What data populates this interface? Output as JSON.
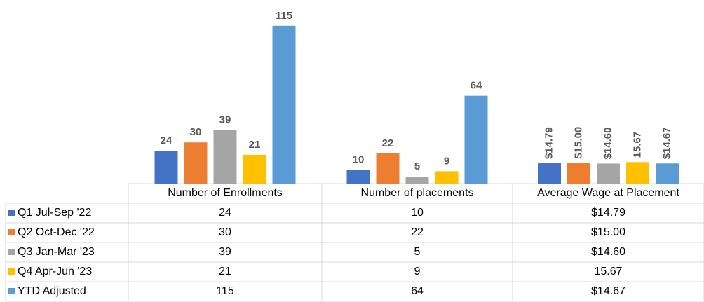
{
  "chart_data": {
    "type": "bar",
    "categories": [
      "Number of Enrollments",
      "Number of placements",
      "Average Wage at Placement"
    ],
    "series": [
      {
        "name": "Q1 Jul-Sep '22",
        "color": "#4472c4",
        "values": [
          24,
          10,
          14.79
        ],
        "value_labels": [
          "24",
          "10",
          "$14.79"
        ]
      },
      {
        "name": "Q2 Oct-Dec '22",
        "color": "#ed7d31",
        "values": [
          30,
          22,
          15.0
        ],
        "value_labels": [
          "30",
          "22",
          "$15.00"
        ]
      },
      {
        "name": "Q3 Jan-Mar '23",
        "color": "#a5a5a5",
        "values": [
          39,
          5,
          14.6
        ],
        "value_labels": [
          "39",
          "5",
          "$14.60"
        ]
      },
      {
        "name": "Q4 Apr-Jun '23",
        "color": "#ffc000",
        "values": [
          21,
          9,
          15.67
        ],
        "value_labels": [
          "21",
          "9",
          "15.67"
        ]
      },
      {
        "name": "YTD Adjusted",
        "color": "#5b9bd5",
        "values": [
          115,
          64,
          14.67
        ],
        "value_labels": [
          "115",
          "64",
          "$14.67"
        ]
      }
    ],
    "ylim": [
      0,
      120
    ]
  }
}
